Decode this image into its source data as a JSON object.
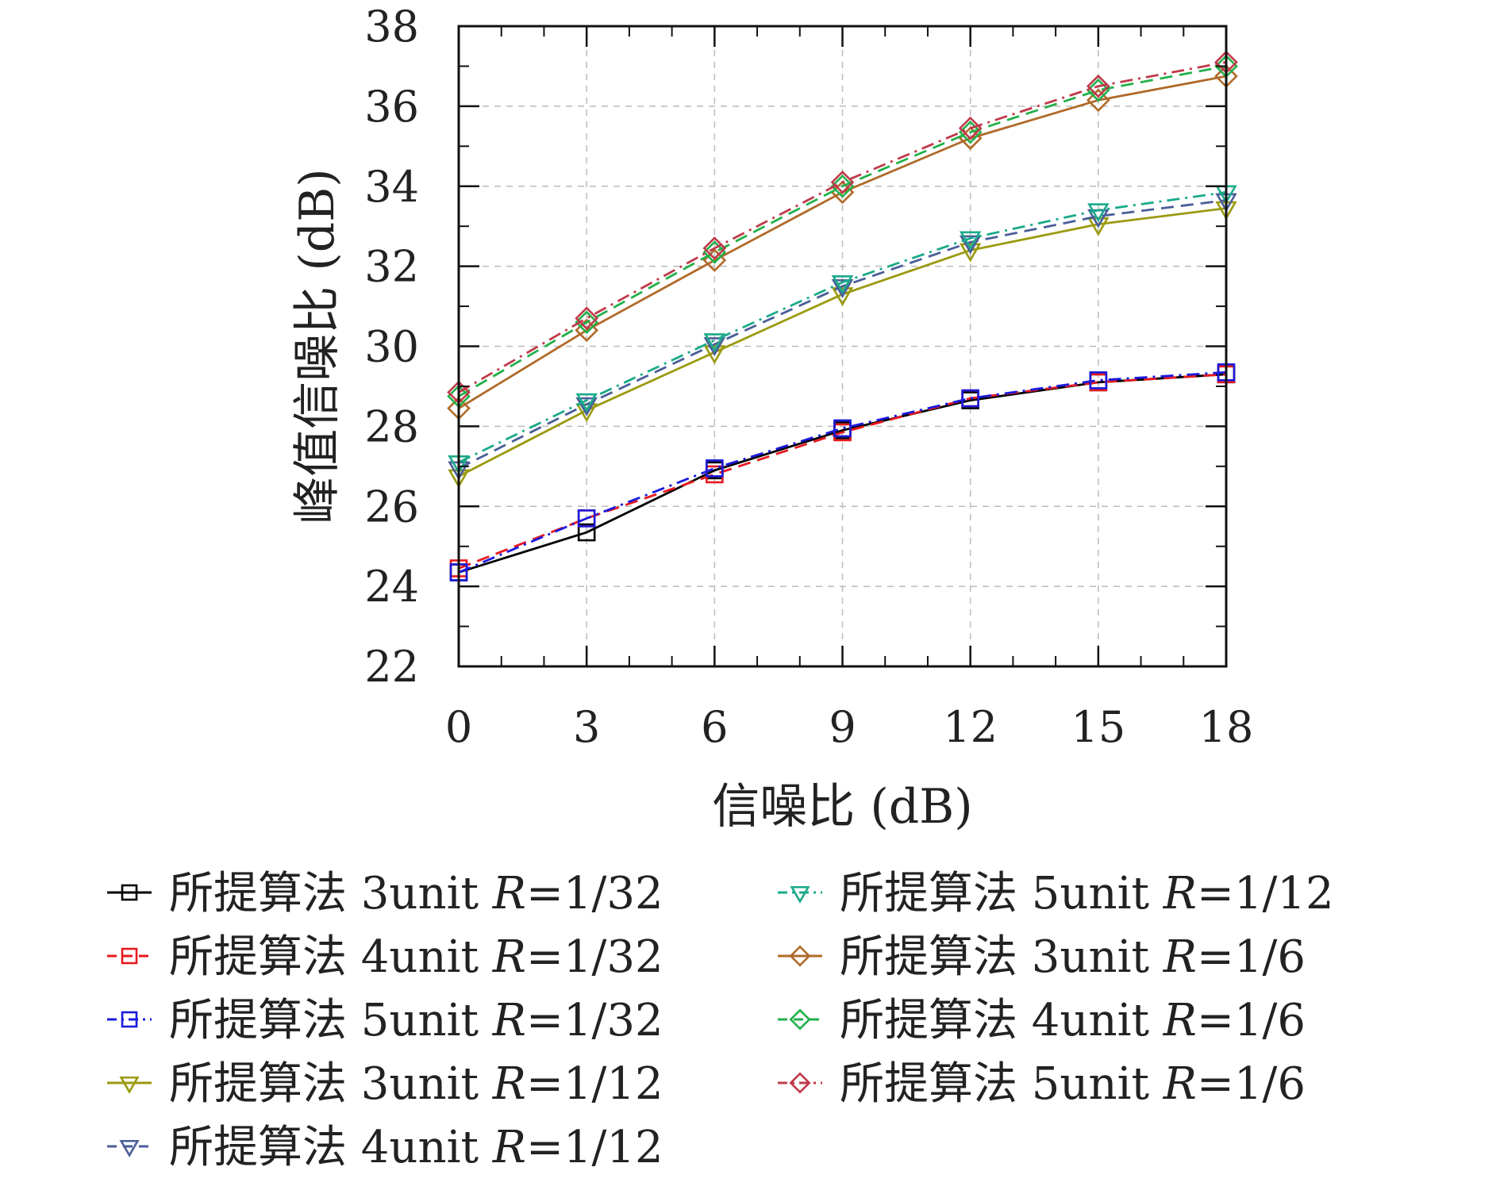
{
  "chart_data": {
    "type": "line",
    "xlabel": "信噪比 (dB)",
    "ylabel": "峰值信噪比 (dB)",
    "x": [
      0,
      3,
      6,
      9,
      12,
      15,
      18
    ],
    "xticks": [
      0,
      3,
      6,
      9,
      12,
      15,
      18
    ],
    "yticks": [
      22,
      24,
      26,
      28,
      30,
      32,
      34,
      36,
      38
    ],
    "xlim": [
      0,
      18
    ],
    "ylim": [
      22,
      38
    ],
    "grid": true,
    "legend_position": "bottom",
    "series": [
      {
        "name": "所提算法 3unit R=1/32",
        "prefix": "所提算法 3unit ",
        "rate": "=1/32",
        "color": "#000000",
        "marker": "square",
        "dash": "solid",
        "values": [
          24.35,
          25.35,
          26.9,
          27.9,
          28.65,
          29.1,
          29.3
        ]
      },
      {
        "name": "所提算法 4unit R=1/32",
        "prefix": "所提算法 4unit ",
        "rate": "=1/32",
        "color": "#e8191f",
        "marker": "square",
        "dash": "dashed",
        "values": [
          24.45,
          25.7,
          26.8,
          27.85,
          28.7,
          29.1,
          29.3
        ]
      },
      {
        "name": "所提算法 5unit R=1/32",
        "prefix": "所提算法 5unit ",
        "rate": "=1/32",
        "color": "#1a1adc",
        "marker": "square",
        "dash": "dashdot",
        "values": [
          24.35,
          25.7,
          26.95,
          27.95,
          28.7,
          29.15,
          29.35
        ]
      },
      {
        "name": "所提算法 3unit R=1/12",
        "prefix": "所提算法 3unit ",
        "rate": "=1/12",
        "color": "#9a9a10",
        "marker": "triangle-down",
        "dash": "solid",
        "values": [
          26.75,
          28.4,
          29.85,
          31.3,
          32.4,
          33.05,
          33.45
        ]
      },
      {
        "name": "所提算法 4unit R=1/12",
        "prefix": "所提算法 4unit ",
        "rate": "=1/12",
        "color": "#4a5e98",
        "marker": "triangle-down",
        "dash": "dashed",
        "values": [
          26.95,
          28.55,
          30.05,
          31.5,
          32.6,
          33.25,
          33.65
        ]
      },
      {
        "name": "所提算法 5unit R=1/12",
        "prefix": "所提算法 5unit ",
        "rate": "=1/12",
        "color": "#1aaa8a",
        "marker": "triangle-down",
        "dash": "dashdot",
        "values": [
          27.1,
          28.65,
          30.15,
          31.6,
          32.7,
          33.4,
          33.85
        ]
      },
      {
        "name": "所提算法 3unit R=1/6",
        "prefix": "所提算法 3unit ",
        "rate": "=1/6",
        "color": "#b06a2a",
        "marker": "diamond",
        "dash": "solid",
        "values": [
          28.45,
          30.4,
          32.15,
          33.85,
          35.2,
          36.15,
          36.75
        ]
      },
      {
        "name": "所提算法 4unit R=1/6",
        "prefix": "所提算法 4unit ",
        "rate": "=1/6",
        "color": "#22b04a",
        "marker": "diamond",
        "dash": "dashed",
        "values": [
          28.75,
          30.6,
          32.35,
          34.0,
          35.35,
          36.4,
          37.0
        ]
      },
      {
        "name": "所提算法 5unit R=1/6",
        "prefix": "所提算法 5unit ",
        "rate": "=1/6",
        "color": "#c03a4a",
        "marker": "diamond",
        "dash": "dashdot",
        "values": [
          28.85,
          30.7,
          32.45,
          34.1,
          35.45,
          36.5,
          37.1
        ]
      }
    ]
  }
}
